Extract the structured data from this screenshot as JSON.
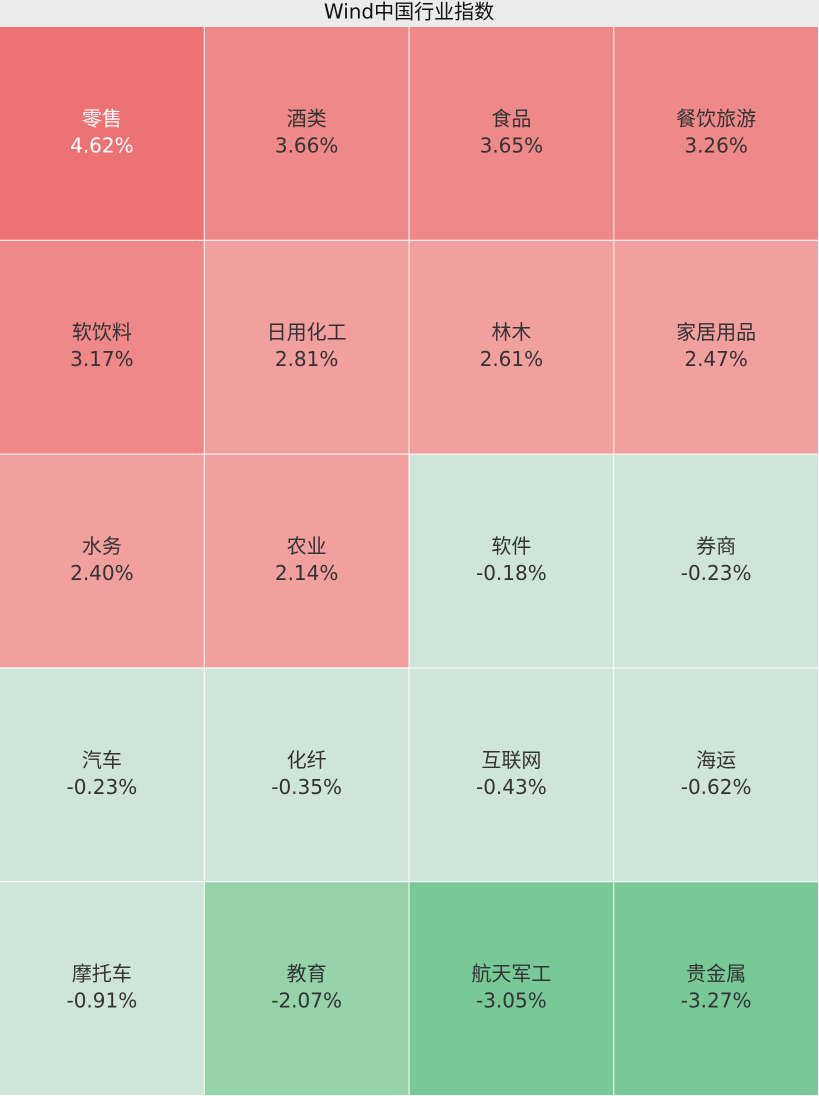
{
  "chart_data": {
    "type": "heatmap",
    "title": "Wind中国行业指数",
    "categories": [
      "零售",
      "酒类",
      "食品",
      "餐饮旅游",
      "软饮料",
      "日用化工",
      "林木",
      "家居用品",
      "水务",
      "农业",
      "软件",
      "券商",
      "汽车",
      "化纤",
      "互联网",
      "海运",
      "摩托车",
      "教育",
      "航天军工",
      "贵金属"
    ],
    "values": [
      4.62,
      3.66,
      3.65,
      3.26,
      3.17,
      2.81,
      2.61,
      2.47,
      2.4,
      2.14,
      -0.18,
      -0.23,
      -0.23,
      -0.35,
      -0.43,
      -0.62,
      -0.91,
      -2.07,
      -3.05,
      -3.27
    ],
    "value_labels": [
      "4.62%",
      "3.66%",
      "3.65%",
      "3.26%",
      "3.17%",
      "2.81%",
      "2.61%",
      "2.47%",
      "2.40%",
      "2.14%",
      "-0.18%",
      "-0.23%",
      "-0.23%",
      "-0.35%",
      "-0.43%",
      "-0.62%",
      "-0.91%",
      "-2.07%",
      "-3.05%",
      "-3.27%"
    ],
    "colors": [
      "#ed7273",
      "#ef8889",
      "#ef8889",
      "#ef8889",
      "#ef8889",
      "#f19f9f",
      "#f19f9f",
      "#f19f9f",
      "#f19f9f",
      "#f19f9f",
      "#cfe5d9",
      "#cfe5d9",
      "#cfe5d9",
      "#cfe5d9",
      "#cfe5d9",
      "#cfe5d9",
      "#cfe5d9",
      "#96d3aa",
      "#78c997",
      "#78c997"
    ],
    "text_colors": [
      "#ffffff",
      "#333333",
      "#333333",
      "#333333",
      "#333333",
      "#333333",
      "#333333",
      "#333333",
      "#333333",
      "#333333",
      "#333333",
      "#333333",
      "#333333",
      "#333333",
      "#333333",
      "#333333",
      "#333333",
      "#333333",
      "#333333",
      "#333333"
    ]
  }
}
